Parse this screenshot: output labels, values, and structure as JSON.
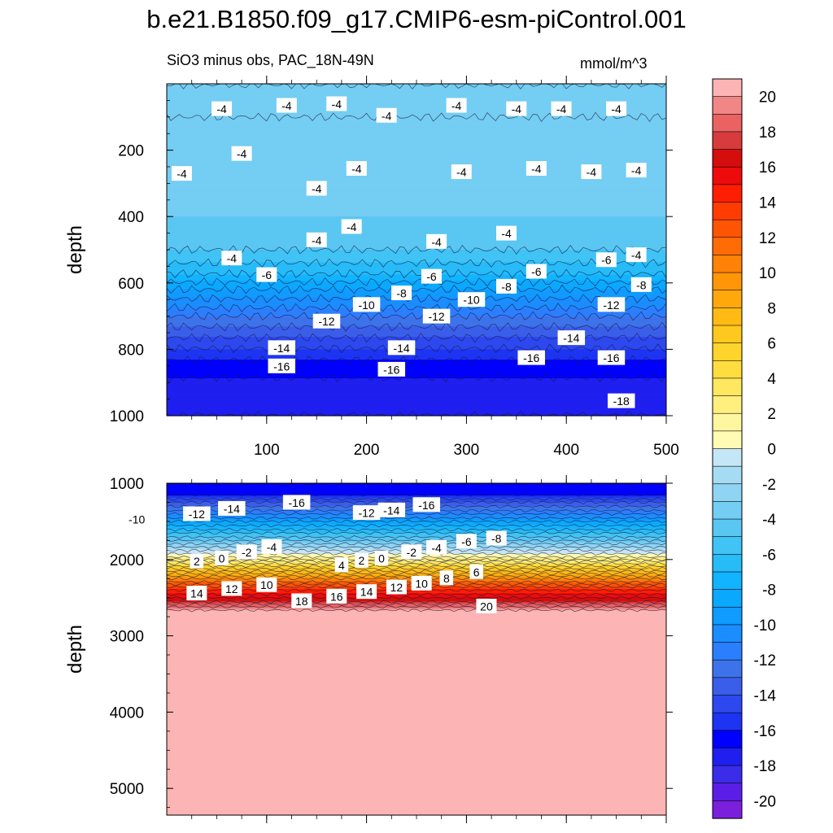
{
  "chart_data": {
    "type": "heatmap",
    "title": "b.e21.B1850.f09_g17.CMIP6-esm-piControl.001",
    "subtitle": "SiO3 minus obs, PAC_18N-49N",
    "units": "mmol/m^3",
    "ylabel": "depth",
    "colorbar": {
      "min": -21,
      "max": 21,
      "step": 1,
      "tick_labels": [
        "20",
        "18",
        "16",
        "14",
        "12",
        "10",
        "8",
        "6",
        "4",
        "2",
        "0",
        "-2",
        "-4",
        "-6",
        "-8",
        "-10",
        "-12",
        "-14",
        "-16",
        "-18",
        "-20"
      ],
      "colors_low_to_high": [
        "#7b1fdd",
        "#5a1ee6",
        "#3a2ce9",
        "#1f1ff0",
        "#0000ff",
        "#1d34f2",
        "#2c48ee",
        "#3a5ee9",
        "#3d73ea",
        "#2b7fff",
        "#1a8dff",
        "#0f9bff",
        "#0aa8ff",
        "#12b3ff",
        "#27bbf8",
        "#40c3f5",
        "#5ac6f2",
        "#74cdf2",
        "#8fd4f3",
        "#a6dcf3",
        "#c5e6f6",
        "#fffbb4",
        "#fff7a0",
        "#ffef7e",
        "#ffe75f",
        "#ffdd3f",
        "#ffd42d",
        "#ffc81f",
        "#ffba14",
        "#ffa80b",
        "#ff9608",
        "#ff8206",
        "#ff6c05",
        "#ff5403",
        "#ff3c02",
        "#ff1e01",
        "#ee0b0b",
        "#d40d0d",
        "#d83b3b",
        "#ea6262",
        "#f18686",
        "#fcb4b4"
      ]
    },
    "panels": [
      {
        "name": "upper",
        "ylim": [
          1000,
          0
        ],
        "xlim": [
          0,
          500
        ],
        "yticks": [
          200,
          400,
          600,
          800,
          1000
        ],
        "xticks": [
          100,
          200,
          300,
          400,
          500
        ],
        "value_profile": [
          [
            0,
            -3
          ],
          [
            40,
            -3.5
          ],
          [
            100,
            -4
          ],
          [
            250,
            -4
          ],
          [
            350,
            -3.5
          ],
          [
            450,
            -4.5
          ],
          [
            500,
            -5
          ],
          [
            560,
            -6.5
          ],
          [
            620,
            -9
          ],
          [
            700,
            -12
          ],
          [
            780,
            -14.5
          ],
          [
            850,
            -16.5
          ],
          [
            920,
            -17.5
          ],
          [
            1000,
            -18
          ]
        ],
        "contour_labels": [
          {
            "x": 55,
            "y": 75,
            "text": "-4"
          },
          {
            "x": 120,
            "y": 65,
            "text": "-4"
          },
          {
            "x": 170,
            "y": 60,
            "text": "-4"
          },
          {
            "x": 220,
            "y": 95,
            "text": "-4"
          },
          {
            "x": 290,
            "y": 65,
            "text": "-4"
          },
          {
            "x": 350,
            "y": 75,
            "text": "-4"
          },
          {
            "x": 395,
            "y": 75,
            "text": "-4"
          },
          {
            "x": 450,
            "y": 75,
            "text": "-4"
          },
          {
            "x": 75,
            "y": 210,
            "text": "-4"
          },
          {
            "x": 15,
            "y": 270,
            "text": "-4"
          },
          {
            "x": 190,
            "y": 255,
            "text": "-4"
          },
          {
            "x": 295,
            "y": 265,
            "text": "-4"
          },
          {
            "x": 370,
            "y": 255,
            "text": "-4"
          },
          {
            "x": 425,
            "y": 265,
            "text": "-4"
          },
          {
            "x": 470,
            "y": 260,
            "text": "-4"
          },
          {
            "x": 150,
            "y": 315,
            "text": "-4"
          },
          {
            "x": 185,
            "y": 430,
            "text": "-4"
          },
          {
            "x": 150,
            "y": 470,
            "text": "-4"
          },
          {
            "x": 270,
            "y": 475,
            "text": "-4"
          },
          {
            "x": 340,
            "y": 450,
            "text": "-4"
          },
          {
            "x": 470,
            "y": 515,
            "text": "-4"
          },
          {
            "x": 65,
            "y": 525,
            "text": "-4"
          },
          {
            "x": 100,
            "y": 575,
            "text": "-6"
          },
          {
            "x": 265,
            "y": 580,
            "text": "-6"
          },
          {
            "x": 370,
            "y": 565,
            "text": "-6"
          },
          {
            "x": 440,
            "y": 530,
            "text": "-6"
          },
          {
            "x": 235,
            "y": 630,
            "text": "-8"
          },
          {
            "x": 340,
            "y": 610,
            "text": "-8"
          },
          {
            "x": 475,
            "y": 605,
            "text": "-8"
          },
          {
            "x": 200,
            "y": 665,
            "text": "-10"
          },
          {
            "x": 305,
            "y": 650,
            "text": "-10"
          },
          {
            "x": 160,
            "y": 715,
            "text": "-12"
          },
          {
            "x": 270,
            "y": 700,
            "text": "-12"
          },
          {
            "x": 445,
            "y": 665,
            "text": "-12"
          },
          {
            "x": 115,
            "y": 795,
            "text": "-14"
          },
          {
            "x": 235,
            "y": 795,
            "text": "-14"
          },
          {
            "x": 405,
            "y": 765,
            "text": "-14"
          },
          {
            "x": 115,
            "y": 850,
            "text": "-16"
          },
          {
            "x": 225,
            "y": 860,
            "text": "-16"
          },
          {
            "x": 365,
            "y": 825,
            "text": "-16"
          },
          {
            "x": 445,
            "y": 825,
            "text": "-16"
          },
          {
            "x": 455,
            "y": 955,
            "text": "-18"
          }
        ]
      },
      {
        "name": "lower",
        "ylim": [
          5350,
          1000
        ],
        "xlim": [
          0,
          500
        ],
        "yticks": [
          1000,
          2000,
          3000,
          4000,
          5000
        ],
        "xticks": [
          100,
          200,
          300,
          400,
          500
        ],
        "value_profile": [
          [
            1000,
            -17
          ],
          [
            1150,
            -16
          ],
          [
            1300,
            -13
          ],
          [
            1450,
            -10
          ],
          [
            1600,
            -7
          ],
          [
            1750,
            -4
          ],
          [
            1880,
            -1
          ],
          [
            1960,
            1
          ],
          [
            2050,
            4
          ],
          [
            2150,
            7
          ],
          [
            2250,
            10
          ],
          [
            2350,
            13
          ],
          [
            2450,
            15
          ],
          [
            2550,
            17
          ],
          [
            2620,
            19
          ],
          [
            2660,
            20
          ],
          [
            2700,
            21
          ],
          [
            5350,
            21
          ]
        ],
        "contour_labels": [
          {
            "x": 130,
            "y": 1250,
            "text": "-16"
          },
          {
            "x": 65,
            "y": 1330,
            "text": "-14"
          },
          {
            "x": 30,
            "y": 1400,
            "text": "-12"
          },
          {
            "x": 200,
            "y": 1385,
            "text": "-12"
          },
          {
            "x": 225,
            "y": 1350,
            "text": "-14"
          },
          {
            "x": 260,
            "y": 1280,
            "text": "-16"
          },
          {
            "x": -30,
            "y": 1470,
            "text": "-10"
          },
          {
            "x": 330,
            "y": 1720,
            "text": "-8"
          },
          {
            "x": 300,
            "y": 1760,
            "text": "-6"
          },
          {
            "x": 270,
            "y": 1840,
            "text": "-4"
          },
          {
            "x": 245,
            "y": 1900,
            "text": "-2"
          },
          {
            "x": 105,
            "y": 1830,
            "text": "-4"
          },
          {
            "x": 80,
            "y": 1900,
            "text": "-2"
          },
          {
            "x": 55,
            "y": 1980,
            "text": "0"
          },
          {
            "x": 30,
            "y": 2020,
            "text": "2"
          },
          {
            "x": 215,
            "y": 1980,
            "text": "0"
          },
          {
            "x": 195,
            "y": 2010,
            "text": "2"
          },
          {
            "x": 175,
            "y": 2070,
            "text": "4"
          },
          {
            "x": 310,
            "y": 2160,
            "text": "6"
          },
          {
            "x": 280,
            "y": 2240,
            "text": "8"
          },
          {
            "x": 255,
            "y": 2310,
            "text": "10"
          },
          {
            "x": 230,
            "y": 2360,
            "text": "12"
          },
          {
            "x": 200,
            "y": 2420,
            "text": "14"
          },
          {
            "x": 170,
            "y": 2480,
            "text": "16"
          },
          {
            "x": 135,
            "y": 2540,
            "text": "18"
          },
          {
            "x": 100,
            "y": 2330,
            "text": "10"
          },
          {
            "x": 65,
            "y": 2380,
            "text": "12"
          },
          {
            "x": 30,
            "y": 2440,
            "text": "14"
          },
          {
            "x": 320,
            "y": 2610,
            "text": "20"
          }
        ]
      }
    ]
  }
}
